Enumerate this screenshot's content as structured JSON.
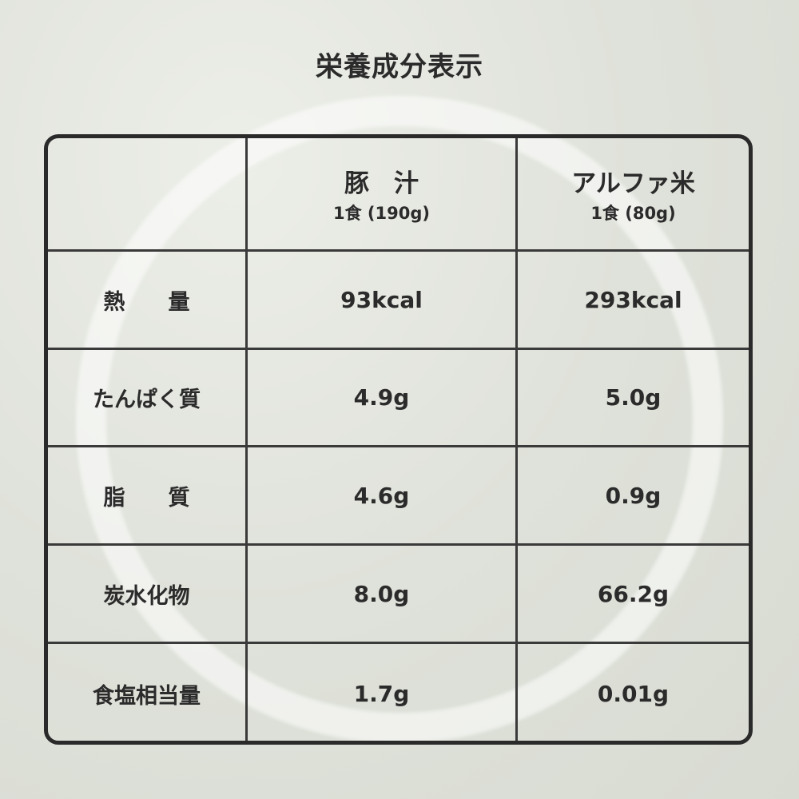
{
  "title": "栄養成分表示",
  "columns": [
    {
      "name": "豚　汁",
      "serving": "1食 (190g)"
    },
    {
      "name": "アルファ米",
      "serving": "1食 (80g)"
    }
  ],
  "rows": [
    {
      "label": "熱　　量",
      "values": [
        "93kcal",
        "293kcal"
      ]
    },
    {
      "label": "たんぱく質",
      "values": [
        "4.9g",
        "5.0g"
      ]
    },
    {
      "label": "脂　　質",
      "values": [
        "4.6g",
        "0.9g"
      ]
    },
    {
      "label": "炭水化物",
      "values": [
        "8.0g",
        "66.2g"
      ]
    },
    {
      "label": "食塩相当量",
      "values": [
        "1.7g",
        "0.01g"
      ]
    }
  ]
}
